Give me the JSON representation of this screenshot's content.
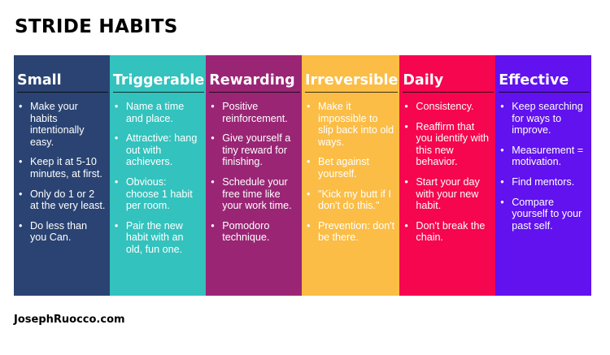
{
  "title": "STRIDE HABITS",
  "footer": "JosephRuocco.com",
  "columns": [
    {
      "header": "Small",
      "color": "#2a4372",
      "items": [
        "Make your habits intentionally easy.",
        "Keep it at 5-10 minutes, at first.",
        "Only do 1 or 2 at the very least.",
        "Do less than you Can."
      ]
    },
    {
      "header": "Triggerable",
      "color": "#33c2bd",
      "items": [
        "Name a time and place.",
        "Attractive: hang out with achievers.",
        "Obvious: choose 1 habit per room.",
        "Pair the new habit with an old, fun one."
      ]
    },
    {
      "header": "Rewarding",
      "color": "#9a2575",
      "items": [
        "Positive reinforcement.",
        "Give yourself a tiny reward for finishing.",
        "Schedule your free time like your work time.",
        "Pomodoro technique."
      ]
    },
    {
      "header": "Irreversible",
      "color": "#fbbd45",
      "items": [
        "Make it impossible to slip back into old ways.",
        "Bet against yourself.",
        "\"Kick my butt if I don't do this.\"",
        "Prevention: don't be there."
      ]
    },
    {
      "header": "Daily",
      "color": "#f5064e",
      "items": [
        "Consistency.",
        "Reaffirm that you identify with this new behavior.",
        "Start your day with your new habit.",
        "Don't break the chain."
      ]
    },
    {
      "header": "Effective",
      "color": "#6112ee",
      "items": [
        "Keep searching for ways to improve.",
        "Measurement = motivation.",
        "Find mentors.",
        "Compare yourself to your past self."
      ]
    }
  ]
}
